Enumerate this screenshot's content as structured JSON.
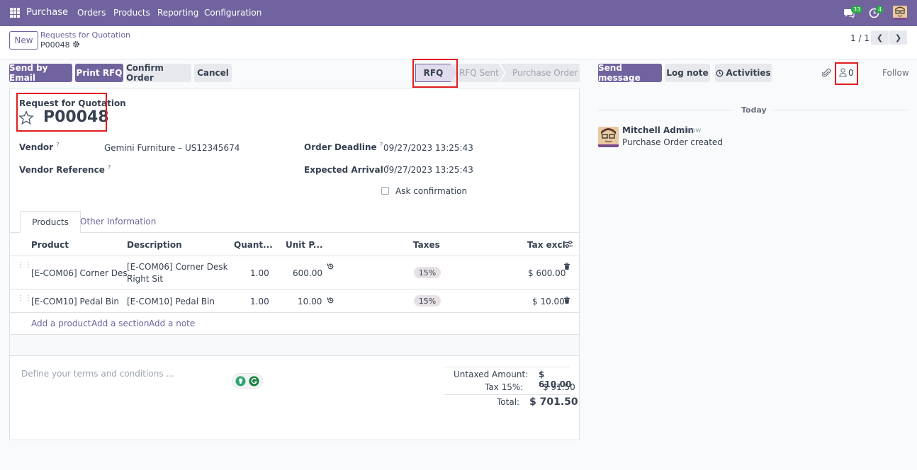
{
  "navbar": {
    "app_name": "Purchase",
    "menu": [
      "Orders",
      "Products",
      "Reporting",
      "Configuration"
    ],
    "messages_count": "33",
    "activities_count": "4"
  },
  "control_panel": {
    "new_label": "New",
    "breadcrumb_parent": "Requests for Quotation",
    "breadcrumb_current": "P00048",
    "pager": "1 / 1"
  },
  "actions": {
    "send_email": "Send by Email",
    "print_rfq": "Print RFQ",
    "confirm_order": "Confirm Order",
    "cancel": "Cancel"
  },
  "status": {
    "steps": [
      "RFQ",
      "RFQ Sent",
      "Purchase Order"
    ],
    "active": "RFQ"
  },
  "form": {
    "doc_type": "Request for Quotation",
    "doc_number": "P00048",
    "vendor_label": "Vendor",
    "vendor_value": "Gemini Furniture – US12345674",
    "vendor_ref_label": "Vendor Reference",
    "order_deadline_label": "Order Deadline",
    "order_deadline_value": "09/27/2023 13:25:43",
    "expected_arrival_label": "Expected Arrival",
    "expected_arrival_value": "09/27/2023 13:25:43",
    "ask_confirmation_label": "Ask confirmation",
    "help_mark": "?"
  },
  "tabs": [
    "Products",
    "Other Information"
  ],
  "table": {
    "headers": [
      "Product",
      "Description",
      "Quant...",
      "Unit P...",
      "Taxes",
      "Tax excl."
    ],
    "rows": [
      {
        "product": "[E-COM06] Corner Des...",
        "desc1": "[E-COM06] Corner Desk",
        "desc2": "Right Sit",
        "qty": "1.00",
        "price": "600.00",
        "tax": "15%",
        "subtotal": "$ 600.00"
      },
      {
        "product": "[E-COM10] Pedal Bin",
        "desc1": "[E-COM10] Pedal Bin",
        "desc2": "",
        "qty": "1.00",
        "price": "10.00",
        "tax": "15%",
        "subtotal": "$ 10.00"
      }
    ],
    "add_product": "Add a product",
    "add_section": "Add a section",
    "add_note": "Add a note"
  },
  "footer": {
    "terms_placeholder": "Define your terms and conditions ...",
    "untaxed_label": "Untaxed Amount:",
    "untaxed_value": "$ 610.00",
    "tax_label": "Tax 15%:",
    "tax_value": "$ 91.50",
    "total_label": "Total:",
    "total_value": "$ 701.50"
  },
  "chatter": {
    "send_message": "Send message",
    "log_note": "Log note",
    "activities": "Activities",
    "followers_count": "0",
    "follow": "Follow",
    "date_separator": "Today",
    "message": {
      "author": "Mitchell Admin",
      "time": "- now",
      "body": "Purchase Order created"
    }
  },
  "colors": {
    "brand": "#71639e",
    "highlight": "#e21d1d",
    "badge": "#28a745"
  }
}
